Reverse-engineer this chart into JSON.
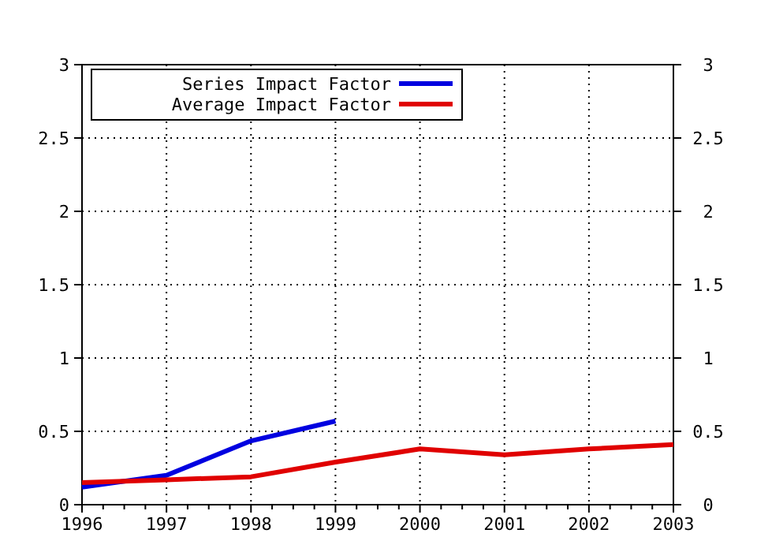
{
  "chart_data": {
    "type": "line",
    "x": [
      1996,
      1997,
      1998,
      1999,
      2000,
      2001,
      2002,
      2003
    ],
    "series": [
      {
        "name": "Series Impact Factor",
        "color": "#0000e0",
        "values": [
          0.12,
          0.2,
          0.435,
          0.57,
          null,
          null,
          null,
          null
        ]
      },
      {
        "name": "Average Impact Factor",
        "color": "#e00000",
        "values": [
          0.15,
          0.17,
          0.19,
          0.29,
          0.38,
          0.34,
          0.38,
          0.41
        ]
      }
    ],
    "xlim": [
      1996,
      2003
    ],
    "xticks": [
      1996,
      1997,
      1998,
      1999,
      2000,
      2001,
      2002,
      2003
    ],
    "ylim": [
      0,
      3
    ],
    "yticks": [
      0,
      0.5,
      1,
      1.5,
      2,
      2.5,
      3
    ],
    "y2lim": [
      0,
      3
    ],
    "y2ticks": [
      0,
      0.5,
      1,
      1.5,
      2,
      2.5,
      3
    ],
    "grid": true,
    "legend": "top left",
    "marker": "none",
    "line_style": "solid"
  }
}
